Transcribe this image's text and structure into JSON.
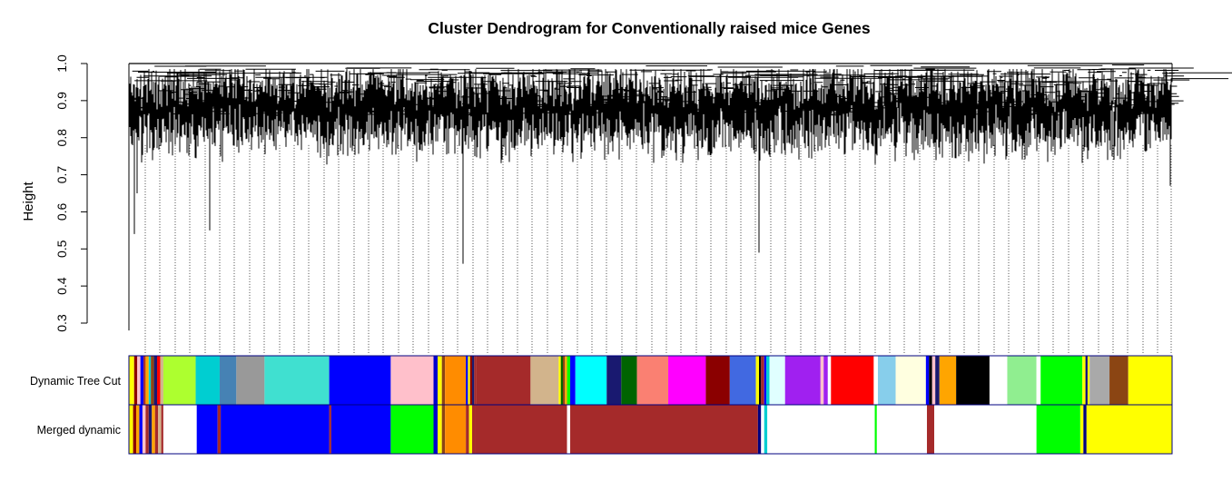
{
  "chart_data": {
    "type": "dendrogram",
    "title": "Cluster Dendrogram for Conventionally raised mice Genes",
    "xlabel": "",
    "ylabel": "Height",
    "ylim": [
      0.3,
      1.0
    ],
    "y_ticks": [
      0.3,
      0.4,
      0.5,
      0.6,
      0.7,
      0.8,
      0.9,
      1.0
    ],
    "y_tick_labels": [
      "0.3",
      "0.4",
      "0.5",
      "0.6",
      "0.7",
      "0.8",
      "0.9",
      "1.0"
    ],
    "grid": false,
    "color_bar_rows": [
      {
        "name": "Dynamic Tree Cut",
        "segments": [
          {
            "start": 0.0,
            "end": 0.005,
            "color": "#ffff00"
          },
          {
            "start": 0.005,
            "end": 0.008,
            "color": "#8b0000"
          },
          {
            "start": 0.008,
            "end": 0.011,
            "color": "#ffc0cb"
          },
          {
            "start": 0.011,
            "end": 0.014,
            "color": "#0000ff"
          },
          {
            "start": 0.014,
            "end": 0.016,
            "color": "#a52a2a"
          },
          {
            "start": 0.016,
            "end": 0.019,
            "color": "#ffa500"
          },
          {
            "start": 0.019,
            "end": 0.021,
            "color": "#00ced1"
          },
          {
            "start": 0.021,
            "end": 0.024,
            "color": "#8b4513"
          },
          {
            "start": 0.024,
            "end": 0.027,
            "color": "#191970"
          },
          {
            "start": 0.027,
            "end": 0.03,
            "color": "#ff0000"
          },
          {
            "start": 0.03,
            "end": 0.033,
            "color": "#d2b48c"
          },
          {
            "start": 0.033,
            "end": 0.064,
            "color": "#adff2f"
          },
          {
            "start": 0.064,
            "end": 0.087,
            "color": "#00ced1"
          },
          {
            "start": 0.087,
            "end": 0.103,
            "color": "#4682b4"
          },
          {
            "start": 0.103,
            "end": 0.13,
            "color": "#999999"
          },
          {
            "start": 0.13,
            "end": 0.192,
            "color": "#40e0d0"
          },
          {
            "start": 0.192,
            "end": 0.251,
            "color": "#0000ff"
          },
          {
            "start": 0.251,
            "end": 0.292,
            "color": "#ffc0cb"
          },
          {
            "start": 0.292,
            "end": 0.296,
            "color": "#0000cd"
          },
          {
            "start": 0.296,
            "end": 0.3,
            "color": "#ffff00"
          },
          {
            "start": 0.3,
            "end": 0.303,
            "color": "#8b4513"
          },
          {
            "start": 0.303,
            "end": 0.323,
            "color": "#ff8c00"
          },
          {
            "start": 0.323,
            "end": 0.325,
            "color": "#0000ff"
          },
          {
            "start": 0.325,
            "end": 0.327,
            "color": "#ffff00"
          },
          {
            "start": 0.327,
            "end": 0.329,
            "color": "#8b0000"
          },
          {
            "start": 0.329,
            "end": 0.331,
            "color": "#191970"
          },
          {
            "start": 0.331,
            "end": 0.333,
            "color": "#a52a2a"
          },
          {
            "start": 0.333,
            "end": 0.385,
            "color": "#a52a2a"
          },
          {
            "start": 0.385,
            "end": 0.412,
            "color": "#d2b48c"
          },
          {
            "start": 0.412,
            "end": 0.414,
            "color": "#ffff00"
          },
          {
            "start": 0.414,
            "end": 0.416,
            "color": "#006400"
          },
          {
            "start": 0.416,
            "end": 0.418,
            "color": "#8b4513"
          },
          {
            "start": 0.418,
            "end": 0.42,
            "color": "#ffa500"
          },
          {
            "start": 0.42,
            "end": 0.423,
            "color": "#00ff00"
          },
          {
            "start": 0.423,
            "end": 0.428,
            "color": "#0000ff"
          },
          {
            "start": 0.428,
            "end": 0.458,
            "color": "#00ffff"
          },
          {
            "start": 0.458,
            "end": 0.472,
            "color": "#191970"
          },
          {
            "start": 0.472,
            "end": 0.487,
            "color": "#006400"
          },
          {
            "start": 0.487,
            "end": 0.517,
            "color": "#fa8072"
          },
          {
            "start": 0.517,
            "end": 0.553,
            "color": "#ff00ff"
          },
          {
            "start": 0.553,
            "end": 0.576,
            "color": "#8b0000"
          },
          {
            "start": 0.576,
            "end": 0.601,
            "color": "#4169e1"
          },
          {
            "start": 0.601,
            "end": 0.604,
            "color": "#ffff00"
          },
          {
            "start": 0.604,
            "end": 0.606,
            "color": "#000000"
          },
          {
            "start": 0.606,
            "end": 0.609,
            "color": "#a52a2a"
          },
          {
            "start": 0.609,
            "end": 0.611,
            "color": "#0000ff"
          },
          {
            "start": 0.611,
            "end": 0.614,
            "color": "#00ced1"
          },
          {
            "start": 0.614,
            "end": 0.629,
            "color": "#e0ffff"
          },
          {
            "start": 0.629,
            "end": 0.663,
            "color": "#a020f0"
          },
          {
            "start": 0.663,
            "end": 0.666,
            "color": "#ffc0cb"
          },
          {
            "start": 0.666,
            "end": 0.67,
            "color": "#a020f0"
          },
          {
            "start": 0.67,
            "end": 0.673,
            "color": "#ffffff"
          },
          {
            "start": 0.673,
            "end": 0.714,
            "color": "#ff0000"
          },
          {
            "start": 0.714,
            "end": 0.718,
            "color": "#ffffff"
          },
          {
            "start": 0.718,
            "end": 0.735,
            "color": "#87ceeb"
          },
          {
            "start": 0.735,
            "end": 0.764,
            "color": "#ffffe0"
          },
          {
            "start": 0.764,
            "end": 0.767,
            "color": "#0000ff"
          },
          {
            "start": 0.767,
            "end": 0.77,
            "color": "#000000"
          },
          {
            "start": 0.77,
            "end": 0.773,
            "color": "#ffc0cb"
          },
          {
            "start": 0.773,
            "end": 0.777,
            "color": "#191970"
          },
          {
            "start": 0.777,
            "end": 0.793,
            "color": "#ffa500"
          },
          {
            "start": 0.793,
            "end": 0.825,
            "color": "#000000"
          },
          {
            "start": 0.825,
            "end": 0.842,
            "color": "#ffffff"
          },
          {
            "start": 0.842,
            "end": 0.87,
            "color": "#90ee90"
          },
          {
            "start": 0.87,
            "end": 0.874,
            "color": "#ffffff"
          },
          {
            "start": 0.874,
            "end": 0.914,
            "color": "#00ff00"
          },
          {
            "start": 0.914,
            "end": 0.917,
            "color": "#ffff00"
          },
          {
            "start": 0.917,
            "end": 0.919,
            "color": "#000080"
          },
          {
            "start": 0.919,
            "end": 0.921,
            "color": "#ffff00"
          },
          {
            "start": 0.921,
            "end": 0.94,
            "color": "#a9a9a9"
          },
          {
            "start": 0.94,
            "end": 0.958,
            "color": "#8b4513"
          },
          {
            "start": 0.958,
            "end": 1.0,
            "color": "#ffff00"
          }
        ]
      },
      {
        "name": "Merged dynamic",
        "segments": [
          {
            "start": 0.0,
            "end": 0.004,
            "color": "#ffff00"
          },
          {
            "start": 0.004,
            "end": 0.007,
            "color": "#8b0000"
          },
          {
            "start": 0.007,
            "end": 0.01,
            "color": "#ffa500"
          },
          {
            "start": 0.01,
            "end": 0.013,
            "color": "#0000ff"
          },
          {
            "start": 0.013,
            "end": 0.016,
            "color": "#ffc0cb"
          },
          {
            "start": 0.016,
            "end": 0.019,
            "color": "#a52a2a"
          },
          {
            "start": 0.019,
            "end": 0.022,
            "color": "#191970"
          },
          {
            "start": 0.022,
            "end": 0.025,
            "color": "#ffa500"
          },
          {
            "start": 0.025,
            "end": 0.028,
            "color": "#a52a2a"
          },
          {
            "start": 0.028,
            "end": 0.031,
            "color": "#d2b48c"
          },
          {
            "start": 0.031,
            "end": 0.033,
            "color": "#a52a2a"
          },
          {
            "start": 0.033,
            "end": 0.065,
            "color": "#ffffff"
          },
          {
            "start": 0.065,
            "end": 0.085,
            "color": "#0000ff"
          },
          {
            "start": 0.085,
            "end": 0.088,
            "color": "#a52a2a"
          },
          {
            "start": 0.088,
            "end": 0.192,
            "color": "#0000ff"
          },
          {
            "start": 0.192,
            "end": 0.194,
            "color": "#a52a2a"
          },
          {
            "start": 0.194,
            "end": 0.251,
            "color": "#0000ff"
          },
          {
            "start": 0.251,
            "end": 0.292,
            "color": "#00ff00"
          },
          {
            "start": 0.292,
            "end": 0.296,
            "color": "#0000cd"
          },
          {
            "start": 0.296,
            "end": 0.3,
            "color": "#ffff00"
          },
          {
            "start": 0.3,
            "end": 0.303,
            "color": "#8b4513"
          },
          {
            "start": 0.303,
            "end": 0.323,
            "color": "#ff8c00"
          },
          {
            "start": 0.323,
            "end": 0.326,
            "color": "#a52a2a"
          },
          {
            "start": 0.326,
            "end": 0.329,
            "color": "#ffff00"
          },
          {
            "start": 0.329,
            "end": 0.332,
            "color": "#a52a2a"
          },
          {
            "start": 0.332,
            "end": 0.42,
            "color": "#a52a2a"
          },
          {
            "start": 0.42,
            "end": 0.423,
            "color": "#ffffff"
          },
          {
            "start": 0.423,
            "end": 0.603,
            "color": "#a52a2a"
          },
          {
            "start": 0.603,
            "end": 0.606,
            "color": "#000080"
          },
          {
            "start": 0.606,
            "end": 0.609,
            "color": "#ffffff"
          },
          {
            "start": 0.609,
            "end": 0.612,
            "color": "#00ced1"
          },
          {
            "start": 0.612,
            "end": 0.715,
            "color": "#ffffff"
          },
          {
            "start": 0.715,
            "end": 0.717,
            "color": "#00ff00"
          },
          {
            "start": 0.717,
            "end": 0.765,
            "color": "#ffffff"
          },
          {
            "start": 0.765,
            "end": 0.772,
            "color": "#a52a2a"
          },
          {
            "start": 0.772,
            "end": 0.87,
            "color": "#ffffff"
          },
          {
            "start": 0.87,
            "end": 0.912,
            "color": "#00ff00"
          },
          {
            "start": 0.912,
            "end": 0.915,
            "color": "#ffff00"
          },
          {
            "start": 0.915,
            "end": 0.918,
            "color": "#000080"
          },
          {
            "start": 0.918,
            "end": 1.0,
            "color": "#ffff00"
          }
        ]
      }
    ],
    "colors": {
      "tree_line": "#000000",
      "leaf_guides": "#444444",
      "bar_border": "#000080"
    }
  }
}
